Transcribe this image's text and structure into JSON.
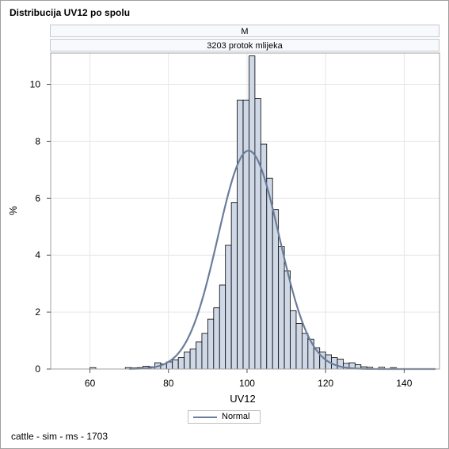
{
  "title": "Distribucija UV12 po spolu",
  "panel": {
    "sex": "M",
    "trait": "3203 protok mlijeka"
  },
  "footnote": "cattle - sim - ms - 1703",
  "chart_data": {
    "type": "bar",
    "subtype": "histogram",
    "xlabel": "UV12",
    "ylabel": "%",
    "xlim": [
      50,
      149
    ],
    "ylim": [
      0,
      11.1
    ],
    "xticks": [
      60,
      80,
      100,
      120,
      140
    ],
    "yticks": [
      0,
      2,
      4,
      6,
      8,
      10
    ],
    "grid": true,
    "bin_width": 1.5,
    "bins": [
      [
        60,
        0.05
      ],
      [
        69,
        0.05
      ],
      [
        70.5,
        0.04
      ],
      [
        72,
        0.05
      ],
      [
        73.5,
        0.1
      ],
      [
        75,
        0.08
      ],
      [
        76.5,
        0.22
      ],
      [
        78,
        0.18
      ],
      [
        79.5,
        0.25
      ],
      [
        81,
        0.32
      ],
      [
        82.5,
        0.4
      ],
      [
        84,
        0.6
      ],
      [
        85.5,
        0.7
      ],
      [
        87,
        0.95
      ],
      [
        88.5,
        1.25
      ],
      [
        90,
        1.75
      ],
      [
        91.5,
        2.15
      ],
      [
        93,
        2.95
      ],
      [
        94.5,
        4.35
      ],
      [
        96,
        5.85
      ],
      [
        97.5,
        9.45
      ],
      [
        99,
        9.45
      ],
      [
        100.5,
        11.0
      ],
      [
        102,
        9.5
      ],
      [
        103.5,
        7.9
      ],
      [
        105,
        6.7
      ],
      [
        106.5,
        5.6
      ],
      [
        108,
        4.3
      ],
      [
        109.5,
        3.45
      ],
      [
        111,
        2.05
      ],
      [
        112.5,
        1.6
      ],
      [
        114,
        1.25
      ],
      [
        115.5,
        1.05
      ],
      [
        117,
        0.75
      ],
      [
        118.5,
        0.6
      ],
      [
        120,
        0.5
      ],
      [
        121.5,
        0.4
      ],
      [
        123,
        0.35
      ],
      [
        124.5,
        0.2
      ],
      [
        126,
        0.22
      ],
      [
        127.5,
        0.15
      ],
      [
        129,
        0.08
      ],
      [
        130.5,
        0.06
      ],
      [
        133.5,
        0.06
      ],
      [
        136.5,
        0.05
      ]
    ],
    "series": [
      {
        "name": "Normal",
        "type": "normal-density-curve",
        "mean": 100.4,
        "sd": 7.8
      }
    ],
    "colors": {
      "bar_fill": "#cfd8e6",
      "bar_stroke": "#000000",
      "curve": "#6b7d9b",
      "grid": "#e6e6e6"
    },
    "legend": {
      "position": "bottom-center",
      "entries": [
        "Normal"
      ]
    }
  }
}
